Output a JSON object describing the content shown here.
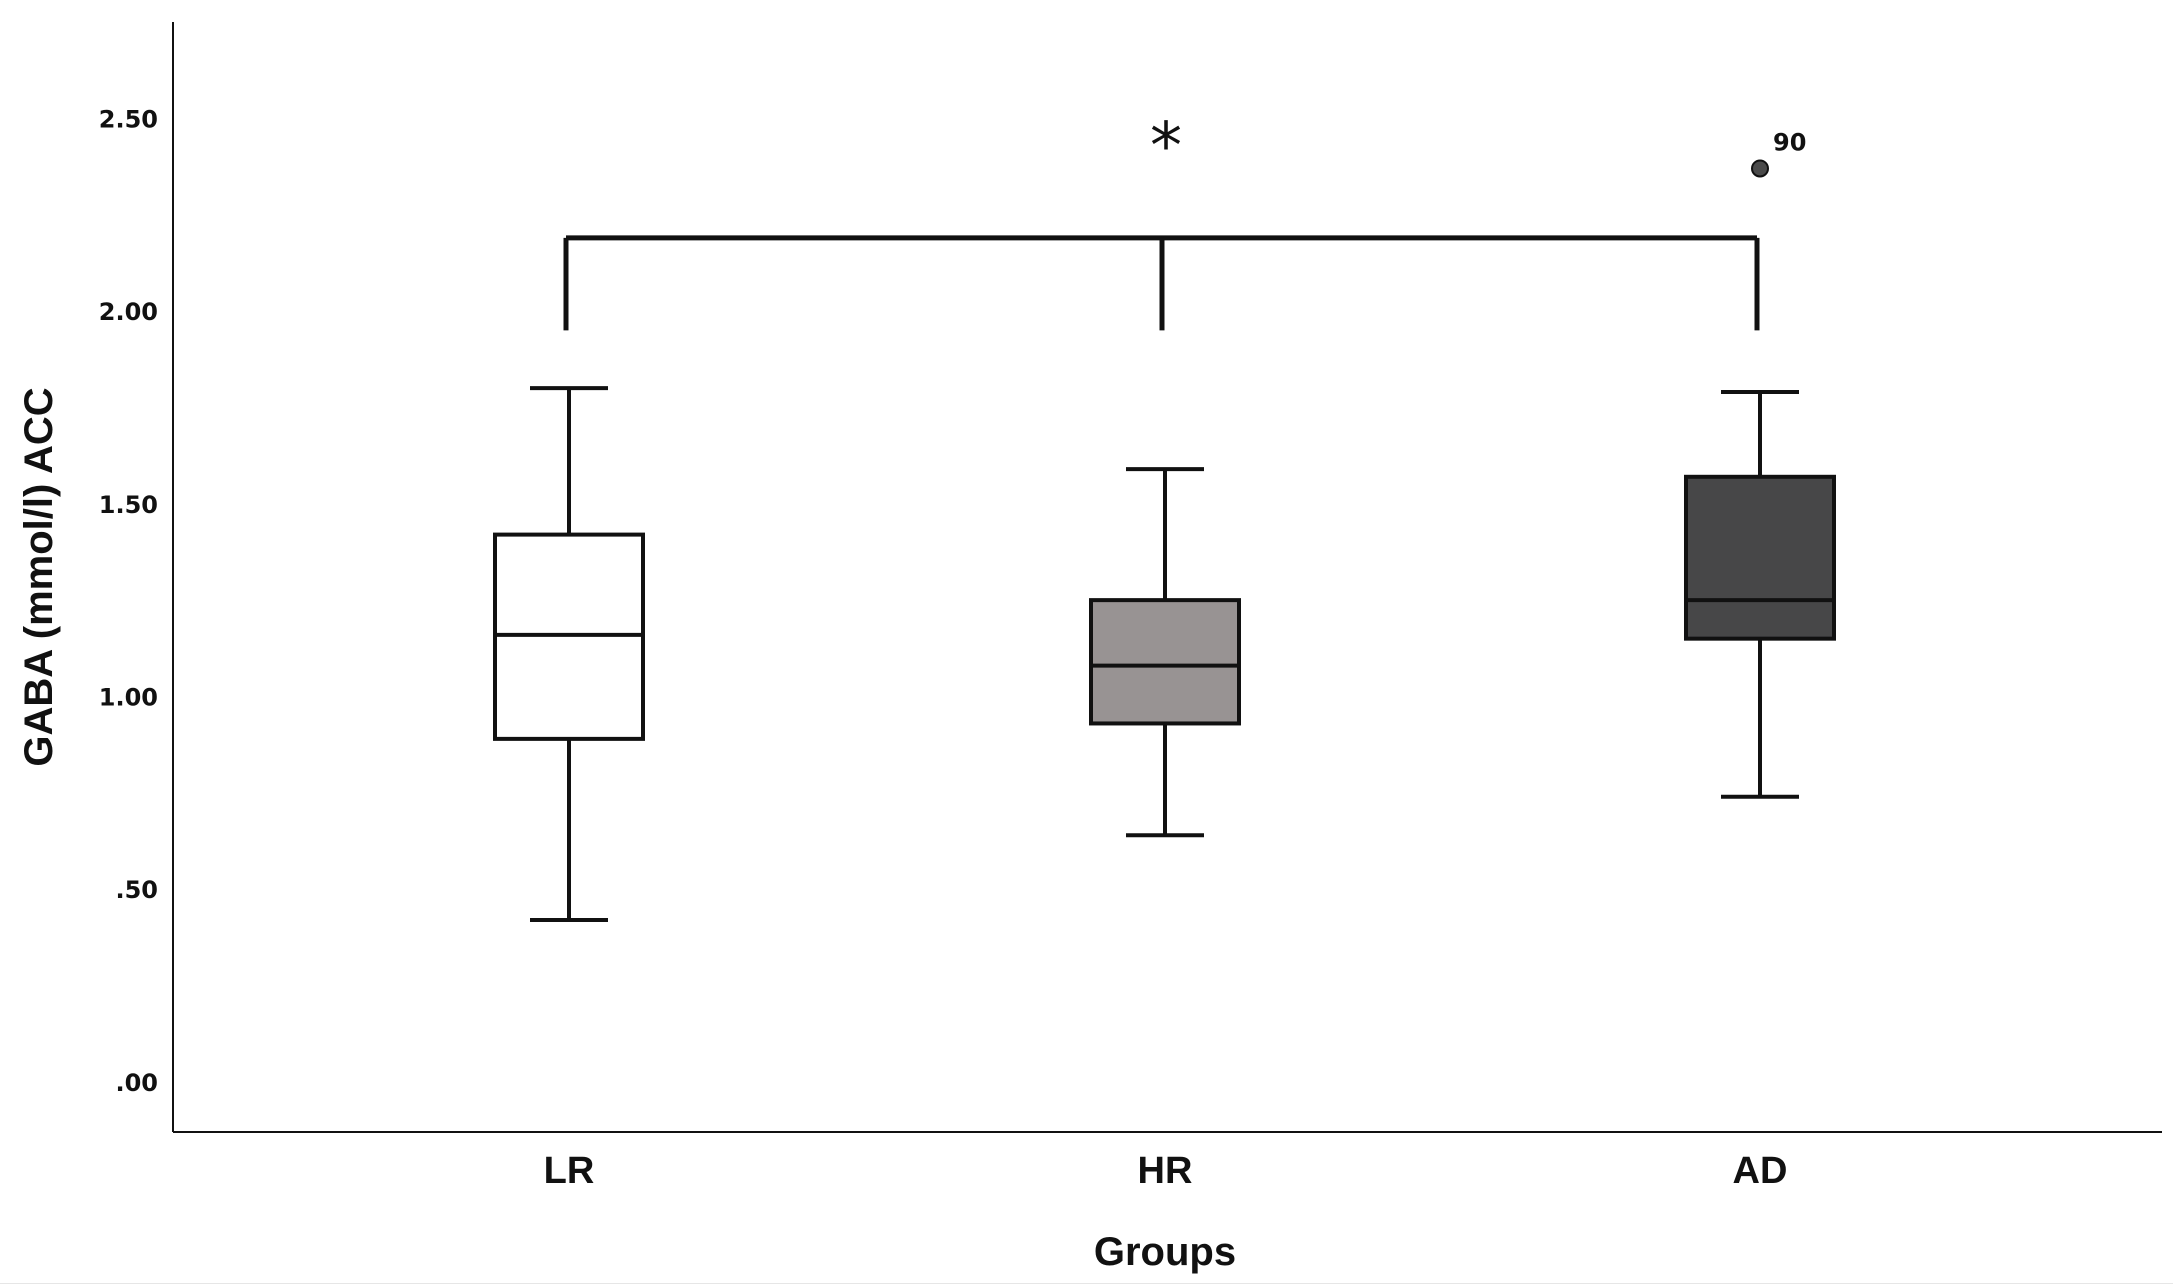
{
  "chart_data": {
    "type": "boxplot",
    "xlabel": "Groups",
    "ylabel": "GABA (mmol/l) ACC",
    "ylim": [
      -0.13,
      2.75
    ],
    "yticks": [
      0.0,
      0.5,
      1.0,
      1.5,
      2.0,
      2.5
    ],
    "ytick_labels": [
      ".00",
      ".50",
      "1.00",
      "1.50",
      "2.00",
      "2.50"
    ],
    "grid": false,
    "categories": [
      "LR",
      "HR",
      "AD"
    ],
    "boxes": [
      {
        "category": "LR",
        "whisker_low": 0.42,
        "q1": 0.89,
        "median": 1.16,
        "q3": 1.42,
        "whisker_high": 1.8,
        "fill": "#ffffff"
      },
      {
        "category": "HR",
        "whisker_low": 0.64,
        "q1": 0.93,
        "median": 1.08,
        "q3": 1.25,
        "whisker_high": 1.59,
        "fill": "#989393"
      },
      {
        "category": "AD",
        "whisker_low": 0.74,
        "q1": 1.15,
        "median": 1.25,
        "q3": 1.57,
        "whisker_high": 1.79,
        "fill": "#474748"
      }
    ],
    "outliers": [
      {
        "category": "AD",
        "value": 2.37,
        "label": "90"
      }
    ],
    "significance": {
      "from": "LR",
      "to": "AD",
      "middle": "HR",
      "bracket_y": 2.19,
      "drop_to": 1.95,
      "marker": "*"
    },
    "colors": {
      "stroke": "#111111",
      "outlier": "#4a4a4a"
    }
  }
}
